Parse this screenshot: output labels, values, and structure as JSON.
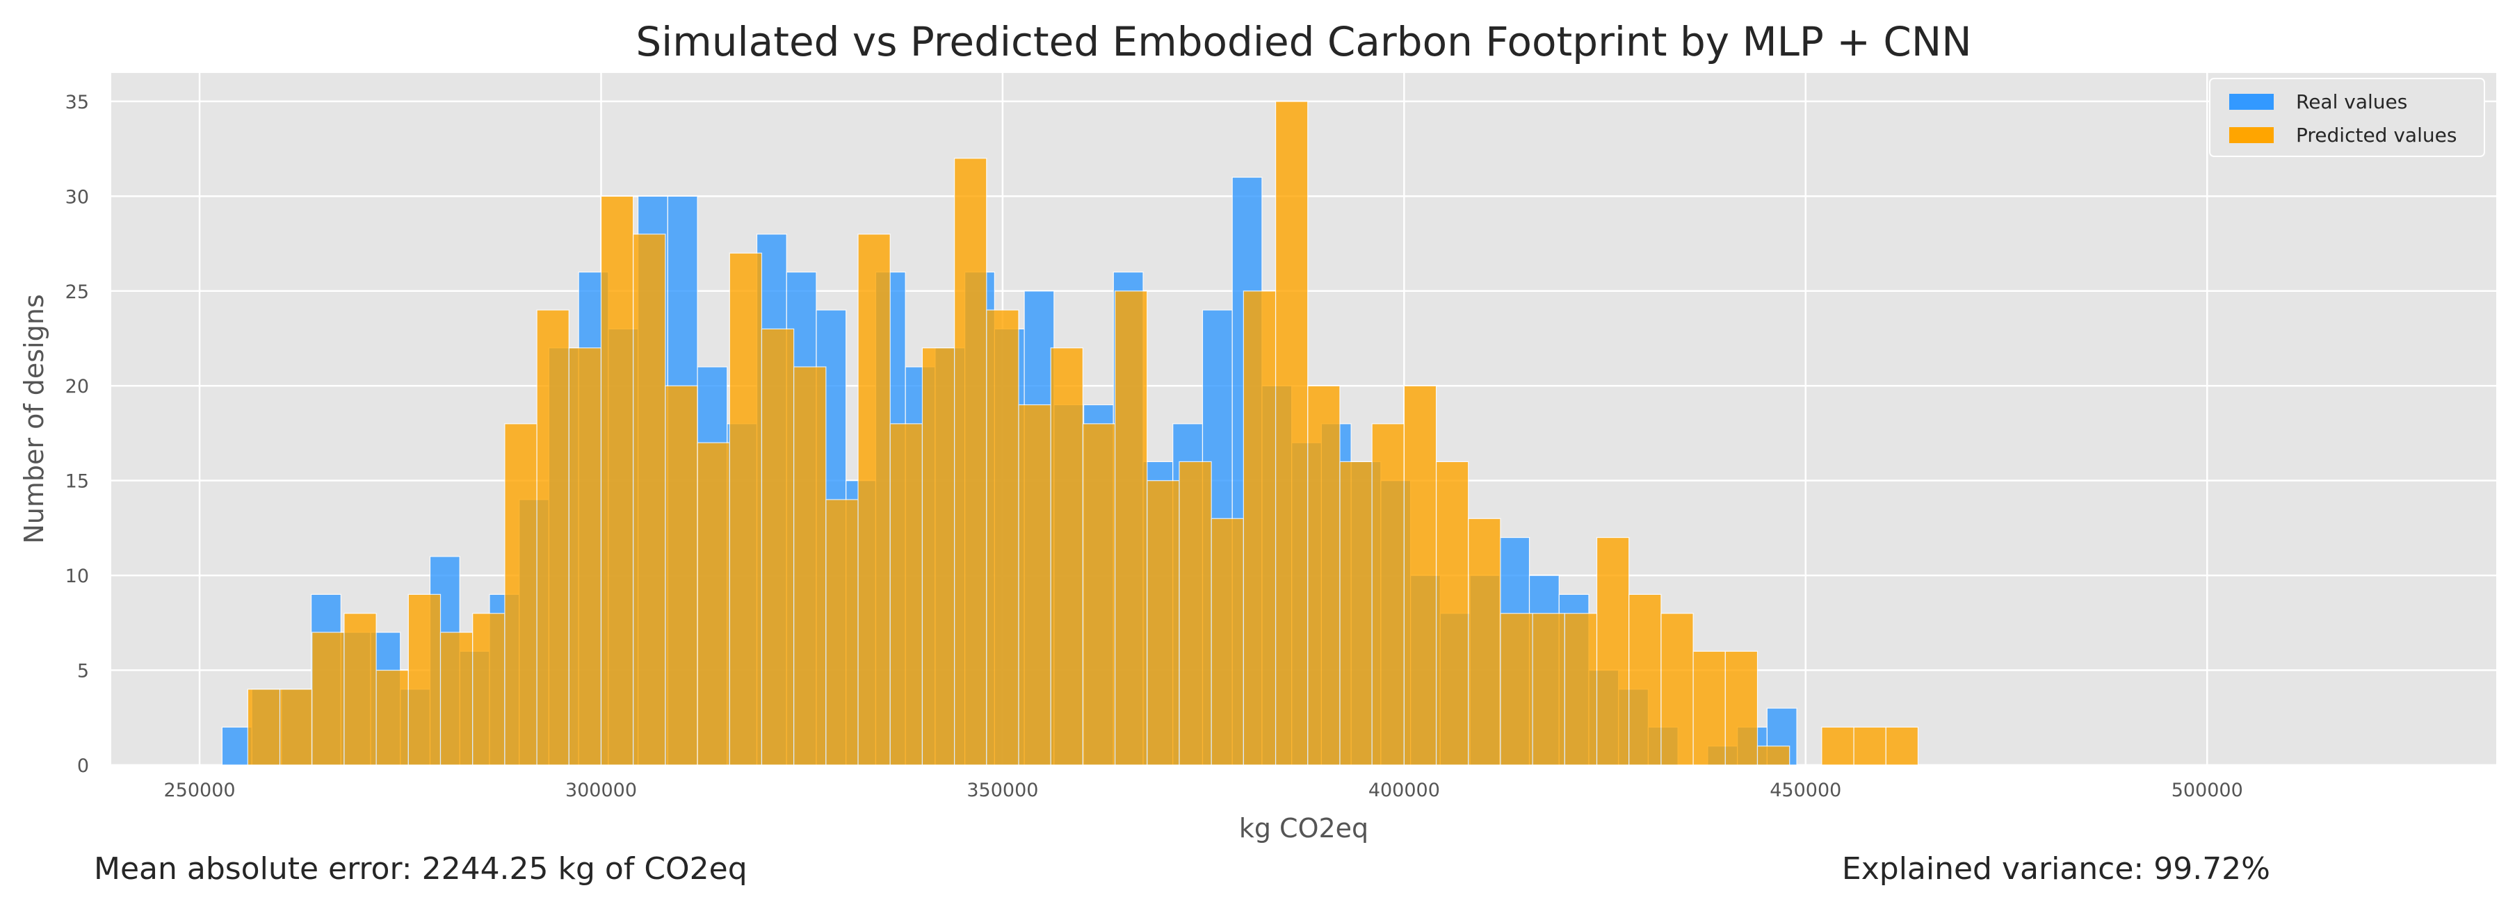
{
  "chart_data": {
    "type": "bar",
    "subtype": "overlaid-histogram",
    "title": "Simulated vs Predicted Embodied Carbon Footprint by MLP + CNN",
    "xlabel": "kg CO2eq",
    "ylabel": "Number of designs",
    "xlim": [
      239000,
      536000
    ],
    "ylim": [
      0,
      36.5
    ],
    "xticks": [
      250000,
      300000,
      350000,
      400000,
      450000,
      500000
    ],
    "yticks": [
      0,
      5,
      10,
      15,
      20,
      25,
      30,
      35
    ],
    "grid": true,
    "legend_position": "top-right",
    "series": [
      {
        "name": "Real values",
        "color": "#3399ff",
        "bin_start": 252800,
        "bin_width": 3700,
        "counts": [
          2,
          4,
          4,
          9,
          7,
          7,
          4,
          11,
          6,
          9,
          14,
          22,
          26,
          23,
          30,
          30,
          21,
          18,
          28,
          26,
          24,
          15,
          26,
          21,
          22,
          26,
          23,
          25,
          19,
          19,
          26,
          16,
          18,
          24,
          31,
          20,
          17,
          18,
          16,
          15,
          10,
          8,
          10,
          12,
          10,
          9,
          5,
          4,
          2,
          0,
          1,
          2,
          3
        ]
      },
      {
        "name": "Predicted values",
        "color": "#ffa500",
        "bin_start": 256000,
        "bin_width": 4000,
        "counts": [
          4,
          4,
          7,
          8,
          5,
          9,
          7,
          8,
          18,
          24,
          22,
          30,
          28,
          20,
          17,
          27,
          23,
          21,
          14,
          28,
          18,
          22,
          32,
          24,
          19,
          22,
          18,
          25,
          15,
          16,
          13,
          25,
          35,
          20,
          16,
          18,
          20,
          16,
          13,
          8,
          8,
          8,
          12,
          9,
          8,
          6,
          6,
          1,
          0,
          2,
          2,
          2
        ]
      }
    ]
  },
  "notes": {
    "mae": "Mean absolute error: 2244.25 kg of CO2eq",
    "explained_variance": "Explained variance: 99.72%"
  }
}
